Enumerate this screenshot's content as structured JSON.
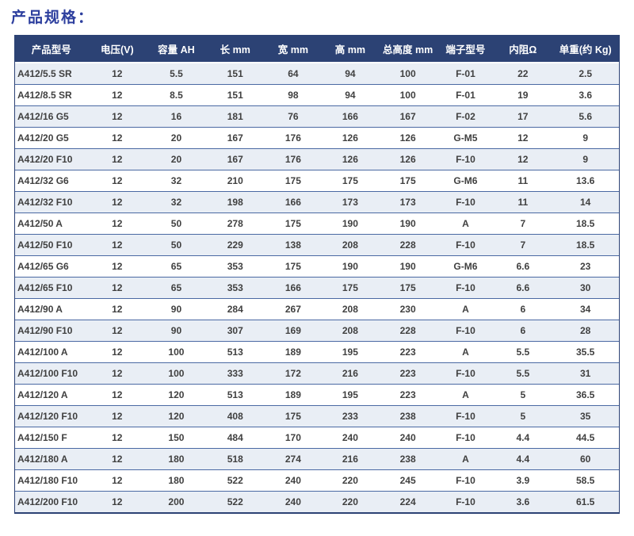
{
  "page": {
    "title": "产品规格："
  },
  "colors": {
    "title-color": "#2d3f9e",
    "header-bg": "#2c4274",
    "header-text": "#ffffff",
    "row-alt-bg": "#e9eef5",
    "row-border": "#4a69a3",
    "outer-border": "#2c4274",
    "body-text": "#404040"
  },
  "table": {
    "columns": [
      "产品型号",
      "电压(V)",
      "容量 AH",
      "长 mm",
      "宽 mm",
      "高 mm",
      "总高度 mm",
      "端子型号",
      "内阻Ω",
      "单重(约 Kg)"
    ],
    "rows": [
      [
        "A412/5.5 SR",
        "12",
        "5.5",
        "151",
        "64",
        "94",
        "100",
        "F-01",
        "22",
        "2.5"
      ],
      [
        "A412/8.5 SR",
        "12",
        "8.5",
        "151",
        "98",
        "94",
        "100",
        "F-01",
        "19",
        "3.6"
      ],
      [
        "A412/16 G5",
        "12",
        "16",
        "181",
        "76",
        "166",
        "167",
        "F-02",
        "17",
        "5.6"
      ],
      [
        "A412/20 G5",
        "12",
        "20",
        "167",
        "176",
        "126",
        "126",
        "G-M5",
        "12",
        "9"
      ],
      [
        "A412/20 F10",
        "12",
        "20",
        "167",
        "176",
        "126",
        "126",
        "F-10",
        "12",
        "9"
      ],
      [
        "A412/32 G6",
        "12",
        "32",
        "210",
        "175",
        "175",
        "175",
        "G-M6",
        "11",
        "13.6"
      ],
      [
        "A412/32 F10",
        "12",
        "32",
        "198",
        "166",
        "173",
        "173",
        "F-10",
        "11",
        "14"
      ],
      [
        "A412/50 A",
        "12",
        "50",
        "278",
        "175",
        "190",
        "190",
        "A",
        "7",
        "18.5"
      ],
      [
        "A412/50 F10",
        "12",
        "50",
        "229",
        "138",
        "208",
        "228",
        "F-10",
        "7",
        "18.5"
      ],
      [
        "A412/65 G6",
        "12",
        "65",
        "353",
        "175",
        "190",
        "190",
        "G-M6",
        "6.6",
        "23"
      ],
      [
        "A412/65 F10",
        "12",
        "65",
        "353",
        "166",
        "175",
        "175",
        "F-10",
        "6.6",
        "30"
      ],
      [
        "A412/90 A",
        "12",
        "90",
        "284",
        "267",
        "208",
        "230",
        "A",
        "6",
        "34"
      ],
      [
        "A412/90 F10",
        "12",
        "90",
        "307",
        "169",
        "208",
        "228",
        "F-10",
        "6",
        "28"
      ],
      [
        "A412/100 A",
        "12",
        "100",
        "513",
        "189",
        "195",
        "223",
        "A",
        "5.5",
        "35.5"
      ],
      [
        "A412/100 F10",
        "12",
        "100",
        "333",
        "172",
        "216",
        "223",
        "F-10",
        "5.5",
        "31"
      ],
      [
        "A412/120 A",
        "12",
        "120",
        "513",
        "189",
        "195",
        "223",
        "A",
        "5",
        "36.5"
      ],
      [
        "A412/120 F10",
        "12",
        "120",
        "408",
        "175",
        "233",
        "238",
        "F-10",
        "5",
        "35"
      ],
      [
        "A412/150 F",
        "12",
        "150",
        "484",
        "170",
        "240",
        "240",
        "F-10",
        "4.4",
        "44.5"
      ],
      [
        "A412/180 A",
        "12",
        "180",
        "518",
        "274",
        "216",
        "238",
        "A",
        "4.4",
        "60"
      ],
      [
        "A412/180 F10",
        "12",
        "180",
        "522",
        "240",
        "220",
        "245",
        "F-10",
        "3.9",
        "58.5"
      ],
      [
        "A412/200 F10",
        "12",
        "200",
        "522",
        "240",
        "220",
        "224",
        "F-10",
        "3.6",
        "61.5"
      ]
    ]
  }
}
